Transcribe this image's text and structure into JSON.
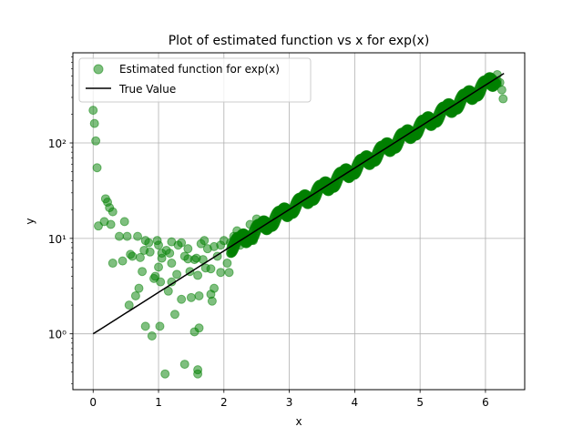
{
  "chart_data": {
    "type": "scatter",
    "title": "Plot of estimated function vs x for exp(x)",
    "xlabel": "x",
    "ylabel": "y",
    "xlim": [
      -0.31,
      6.6
    ],
    "ylim": [
      0.26,
      880
    ],
    "yscale": "log",
    "grid": true,
    "legend_position": "top-left",
    "x_ticks": [
      0,
      1,
      2,
      3,
      4,
      5,
      6
    ],
    "x_tick_labels": [
      "0",
      "1",
      "2",
      "3",
      "4",
      "5",
      "6"
    ],
    "y_ticks": [
      1,
      10,
      100
    ],
    "y_tick_labels": [
      "10⁰",
      "10¹",
      "10²"
    ],
    "series": [
      {
        "name": "Estimated function for exp(x)",
        "kind": "scatter",
        "color": "#008000",
        "x": [
          0.0,
          0.02,
          0.04,
          0.06,
          0.08,
          0.19,
          0.22,
          0.25,
          0.27,
          0.3,
          0.17,
          0.3,
          0.4,
          0.45,
          0.48,
          0.52,
          0.55,
          0.6,
          0.65,
          0.68,
          0.72,
          0.75,
          0.78,
          0.8,
          0.85,
          0.9,
          0.95,
          0.98,
          1.0,
          1.02,
          1.05,
          1.1,
          1.15,
          1.2,
          1.25,
          1.3,
          1.35,
          1.4,
          1.45,
          1.5,
          1.55,
          1.6,
          1.62,
          1.65,
          1.68,
          1.7,
          1.75,
          1.8,
          1.85,
          1.9,
          1.95,
          2.0,
          2.05,
          2.1,
          2.15,
          2.2,
          2.25,
          2.3,
          2.35,
          2.4,
          2.45,
          2.5,
          1.12,
          1.2,
          1.35,
          1.4,
          1.6,
          1.62,
          1.03,
          0.93,
          0.8,
          0.57,
          0.7,
          1.8,
          1.82,
          1.85,
          0.87,
          1.0,
          1.17,
          1.28,
          1.45,
          1.55,
          1.6,
          1.05,
          1.2,
          1.48,
          1.58,
          1.72,
          1.95,
          2.08,
          6.18,
          6.22,
          6.25,
          6.27
        ],
        "y": [
          220,
          160,
          105,
          55,
          13.5,
          26,
          24,
          21,
          14,
          5.5,
          15,
          19,
          10.5,
          5.8,
          15,
          10.5,
          2.0,
          6.5,
          2.5,
          10.5,
          6.3,
          4.5,
          7.5,
          1.2,
          9.0,
          0.95,
          4.0,
          9.5,
          8.5,
          1.2,
          6.2,
          0.38,
          2.8,
          5.5,
          1.6,
          8.5,
          2.3,
          0.48,
          7.8,
          2.4,
          1.05,
          0.42,
          1.15,
          8.8,
          6.0,
          9.5,
          7.8,
          4.8,
          8.2,
          6.5,
          8.5,
          9.5,
          5.5,
          9.0,
          10.5,
          12.0,
          8.5,
          11.0,
          10.0,
          14.0,
          9.5,
          16.0,
          7.5,
          3.5,
          9.0,
          6.5,
          0.38,
          2.5,
          3.5,
          3.8,
          9.5,
          6.8,
          3.0,
          2.6,
          2.2,
          3.0,
          7.2,
          5.0,
          7.0,
          4.2,
          6.1,
          6.0,
          4.1,
          7.0,
          9.2,
          4.5,
          6.2,
          4.9,
          4.4,
          4.4,
          520,
          430,
          360,
          290
        ]
      },
      {
        "name": "True Value",
        "kind": "line",
        "color": "#000000",
        "x": [
          0,
          6.283
        ],
        "y": [
          1,
          535
        ]
      }
    ]
  }
}
